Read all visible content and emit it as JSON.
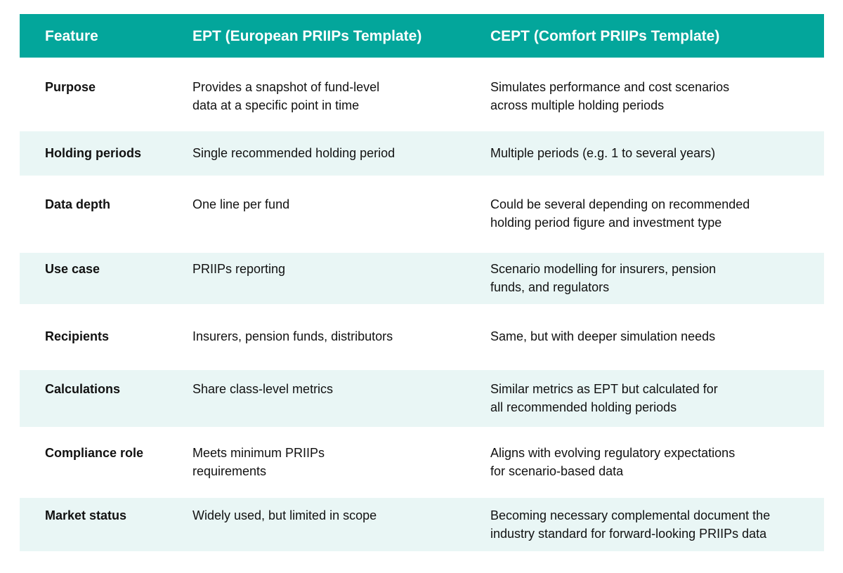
{
  "header": {
    "feature": "Feature",
    "ept": "EPT (European PRIIPs Template)",
    "cept": "CEPT (Comfort PRIIPs Template)"
  },
  "rows": [
    {
      "feature": "Purpose",
      "ept": "Provides a snapshot of fund-level\ndata at a specific point in time",
      "cept": "Simulates performance and cost scenarios\nacross multiple holding periods"
    },
    {
      "feature": "Holding periods",
      "ept": "Single recommended holding period",
      "cept": "Multiple periods (e.g. 1 to several years)"
    },
    {
      "feature": "Data depth",
      "ept": "One line per fund",
      "cept": "Could be several depending on recommended\nholding period figure and investment type"
    },
    {
      "feature": "Use case",
      "ept": "PRIIPs reporting",
      "cept": "Scenario modelling for insurers, pension\nfunds, and regulators"
    },
    {
      "feature": "Recipients",
      "ept": "Insurers, pension funds, distributors",
      "cept": "Same, but with deeper simulation needs"
    },
    {
      "feature": "Calculations",
      "ept": "Share class-level metrics",
      "cept": "Similar metrics as EPT but calculated for\nall recommended holding periods"
    },
    {
      "feature": "Compliance role",
      "ept": "Meets minimum PRIIPs\nrequirements",
      "cept": "Aligns with evolving regulatory expectations\nfor scenario-based data"
    },
    {
      "feature": "Market status",
      "ept": "Widely used, but limited in scope",
      "cept": "Becoming necessary complemental document the\nindustry standard for forward-looking PRIIPs data"
    }
  ]
}
